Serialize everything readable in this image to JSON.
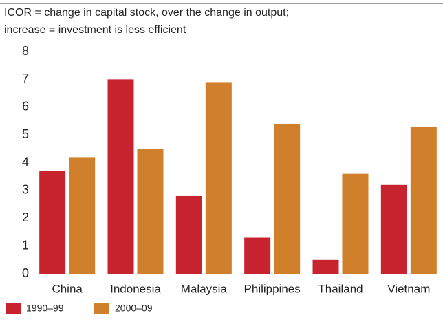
{
  "chart_data": {
    "type": "bar",
    "title": "ICOR = change in capital stock, over the change in output;",
    "subtitle": "increase = investment is less efficient",
    "categories": [
      "China",
      "Indonesia",
      "Malaysia",
      "Philippines",
      "Thailand",
      "Vietnam"
    ],
    "series": [
      {
        "name": "1990–99",
        "color": "#c8242f",
        "values": [
          3.7,
          7.0,
          2.8,
          1.3,
          0.5,
          3.2
        ]
      },
      {
        "name": "2000–09",
        "color": "#d07f2a",
        "values": [
          4.2,
          4.5,
          6.9,
          5.4,
          3.6,
          5.3
        ]
      }
    ],
    "ylim": [
      0,
      8
    ],
    "yticks": [
      0,
      1,
      2,
      3,
      4,
      5,
      6,
      7,
      8
    ],
    "grid": false,
    "legend": "bottom-left"
  }
}
